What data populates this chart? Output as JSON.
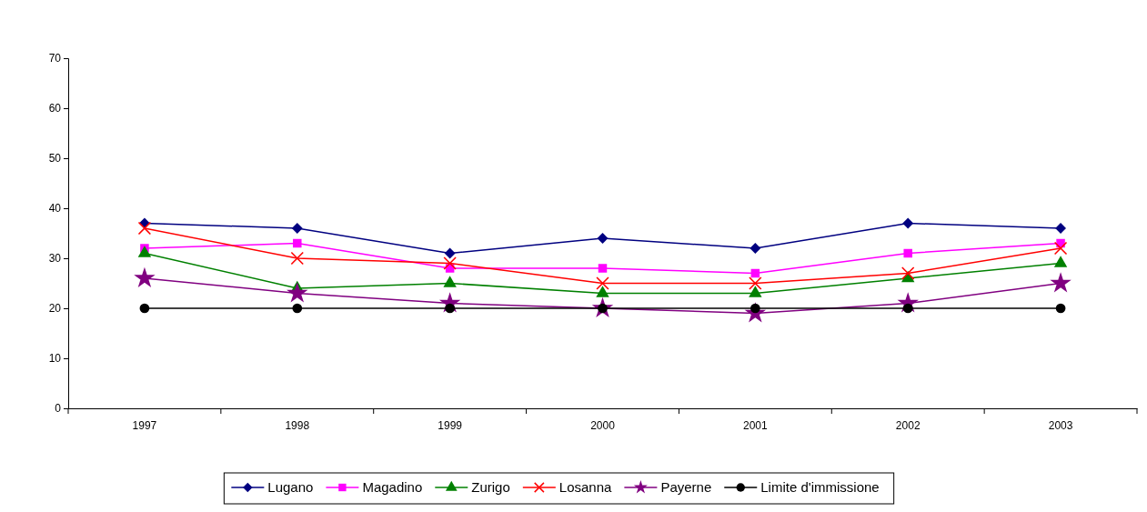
{
  "chart_data": {
    "type": "line",
    "categories": [
      "1997",
      "1998",
      "1999",
      "2000",
      "2001",
      "2002",
      "2003"
    ],
    "ylim": [
      0,
      70
    ],
    "yticks": [
      0,
      10,
      20,
      30,
      40,
      50,
      60,
      70
    ],
    "grid": false,
    "legend": "bottom",
    "line_style": "solid",
    "series": [
      {
        "name": "Lugano",
        "color": "#000080",
        "marker": "diamond",
        "values": [
          37,
          36,
          31,
          34,
          32,
          37,
          36
        ]
      },
      {
        "name": "Magadino",
        "color": "#ff00ff",
        "marker": "square",
        "values": [
          32,
          33,
          28,
          28,
          27,
          31,
          33
        ]
      },
      {
        "name": "Zurigo",
        "color": "#008000",
        "marker": "triangle",
        "values": [
          31,
          24,
          25,
          23,
          23,
          26,
          29
        ]
      },
      {
        "name": "Losanna",
        "color": "#ff0000",
        "marker": "cross",
        "values": [
          36,
          30,
          29,
          25,
          25,
          27,
          32
        ]
      },
      {
        "name": "Payerne",
        "color": "#800080",
        "marker": "star",
        "values": [
          26,
          23,
          21,
          20,
          19,
          21,
          25
        ]
      },
      {
        "name": "Limite d'immissione",
        "color": "#000000",
        "marker": "circle",
        "values": [
          20,
          20,
          20,
          20,
          20,
          20,
          20
        ]
      }
    ]
  }
}
